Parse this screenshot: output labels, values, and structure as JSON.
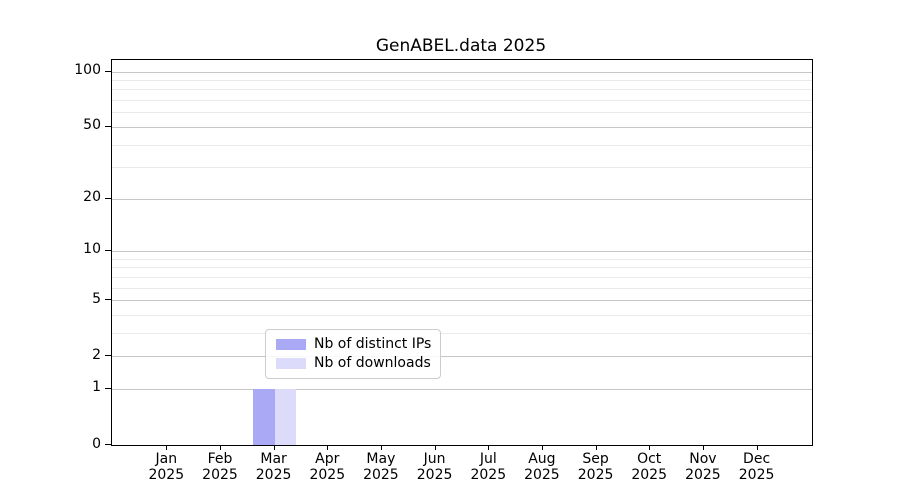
{
  "title": "GenABEL.data 2025",
  "chart_data": {
    "type": "bar",
    "title": "GenABEL.data 2025",
    "x": {
      "months": [
        "Jan",
        "Feb",
        "Mar",
        "Apr",
        "May",
        "Jun",
        "Jul",
        "Aug",
        "Sep",
        "Oct",
        "Nov",
        "Dec"
      ],
      "year": "2025"
    },
    "series": [
      {
        "name": "Nb of distinct IPs",
        "color": "#a9a9f5",
        "values": [
          0,
          0,
          1,
          0,
          0,
          0,
          0,
          0,
          0,
          0,
          0,
          0
        ]
      },
      {
        "name": "Nb of downloads",
        "color": "#dcdcfa",
        "values": [
          0,
          0,
          1,
          0,
          0,
          0,
          0,
          0,
          0,
          0,
          0,
          0
        ]
      }
    ],
    "y_axis": {
      "scale": "log1p",
      "ticks": [
        0,
        1,
        2,
        5,
        10,
        20,
        50,
        100
      ],
      "major_gridlines": [
        1,
        2,
        5,
        10,
        20,
        50,
        100
      ],
      "minor_gridlines": [
        3,
        4,
        6,
        7,
        8,
        9,
        30,
        40,
        60,
        70,
        80,
        90
      ],
      "top_value": 100
    },
    "grid": "horizontal",
    "legend_position": "lower center"
  },
  "legend": {
    "items": [
      {
        "label": "Nb of distinct IPs",
        "color": "#a9a9f5"
      },
      {
        "label": "Nb of downloads",
        "color": "#dcdcfa"
      }
    ]
  },
  "colors": {
    "spine": "#000000",
    "grid_major": "#c6c6c6",
    "grid_minor": "#eaeaea",
    "background": "#ffffff"
  }
}
